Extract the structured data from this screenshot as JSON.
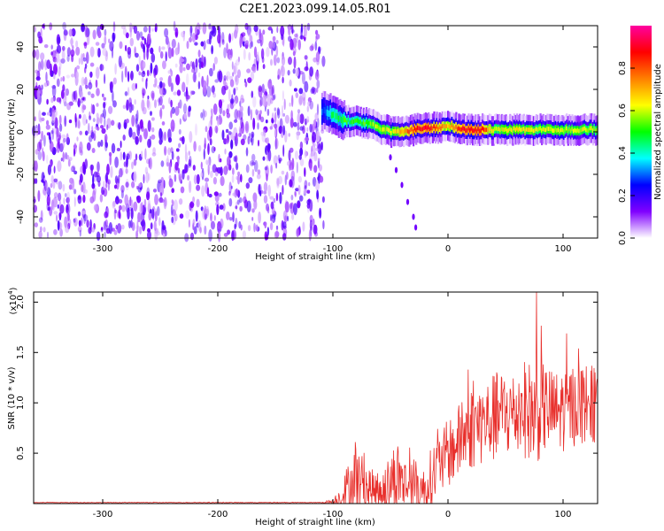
{
  "title": "C2E1.2023.099.14.05.R01",
  "chart_data": [
    {
      "type": "heatmap",
      "name": "spectrogram",
      "xlabel": "Height of straight line (km)",
      "ylabel": "Frequency (Hz)",
      "xlim": [
        -360,
        130
      ],
      "ylim": [
        -50,
        50
      ],
      "xticks": [
        -300,
        -200,
        -100,
        0,
        100
      ],
      "yticks": [
        -40,
        -20,
        0,
        20,
        40
      ],
      "colorbar": {
        "label": "Normalized spectral amplitude",
        "range": [
          0,
          1
        ],
        "ticks": [
          "0.0",
          "0.2",
          "0.4",
          "0.6",
          "0.8"
        ],
        "colormap": "rainbow",
        "colors": [
          "#ffffff",
          "#8000ff",
          "#0000ff",
          "#00ffff",
          "#00ff00",
          "#ffff00",
          "#ff8000",
          "#ff0000",
          "#ff00a0"
        ]
      },
      "noise_region_x": [
        -360,
        -108
      ],
      "signal_track": {
        "x": [
          -110,
          -100,
          -90,
          -80,
          -70,
          -60,
          -50,
          -40,
          -30,
          -20,
          -10,
          0,
          10,
          20,
          30,
          40,
          60,
          80,
          100,
          130
        ],
        "freq": [
          10,
          8,
          5,
          5,
          4,
          2,
          0,
          0,
          1,
          2,
          2,
          3,
          1,
          1,
          1,
          1,
          1,
          1,
          1,
          1
        ],
        "amplitude": [
          0.3,
          0.45,
          0.5,
          0.5,
          0.55,
          0.6,
          0.6,
          0.7,
          0.85,
          0.9,
          0.8,
          0.7,
          0.85,
          0.9,
          0.85,
          0.6,
          0.65,
          0.6,
          0.6,
          0.6
        ]
      },
      "secondary_track": {
        "x": [
          -50,
          -45,
          -40,
          -35,
          -30,
          -28
        ],
        "freq": [
          -12,
          -18,
          -25,
          -33,
          -40,
          -45
        ]
      }
    },
    {
      "type": "line",
      "name": "snr",
      "xlabel": "Height of straight line (km)",
      "ylabel": "SNR (10 * v/v)",
      "multiplier_label": "(x10",
      "multiplier_exp": "4",
      "multiplier_close": ")",
      "xlim": [
        -360,
        130
      ],
      "ylim": [
        0,
        2.1
      ],
      "xticks": [
        -300,
        -200,
        -100,
        0,
        100
      ],
      "yticks": [
        "0.5",
        "1.0",
        "1.5",
        "2.0"
      ],
      "line_color": "#e8302c",
      "envelope": {
        "x": [
          -360,
          -110,
          -100,
          -95,
          -90,
          -85,
          -80,
          -75,
          -70,
          -65,
          -60,
          -55,
          -50,
          -45,
          -40,
          -35,
          -30,
          -25,
          -20,
          -15,
          -10,
          -5,
          0,
          5,
          10,
          15,
          20,
          25,
          30,
          35,
          40,
          45,
          50,
          55,
          60,
          65,
          70,
          75,
          80,
          85,
          90,
          95,
          100,
          105,
          110,
          115,
          120,
          125,
          130
        ],
        "base": [
          0.01,
          0.01,
          0.02,
          0.05,
          0.1,
          0.18,
          0.25,
          0.2,
          0.16,
          0.13,
          0.12,
          0.15,
          0.2,
          0.3,
          0.22,
          0.18,
          0.2,
          0.17,
          0.12,
          0.25,
          0.35,
          0.4,
          0.5,
          0.55,
          0.62,
          0.7,
          0.75,
          0.78,
          0.8,
          0.82,
          0.85,
          0.88,
          0.9,
          0.88,
          0.9,
          0.95,
          0.92,
          0.9,
          0.93,
          0.95,
          0.92,
          0.9,
          0.93,
          0.95,
          0.98,
          1.0,
          1.0,
          0.98,
          0.95
        ],
        "spread": [
          0.003,
          0.003,
          0.03,
          0.1,
          0.2,
          0.3,
          0.35,
          0.3,
          0.25,
          0.2,
          0.2,
          0.25,
          0.3,
          0.38,
          0.3,
          0.25,
          0.25,
          0.25,
          0.22,
          0.3,
          0.32,
          0.32,
          0.35,
          0.35,
          0.38,
          0.4,
          0.42,
          0.42,
          0.42,
          0.42,
          0.45,
          0.45,
          0.45,
          0.45,
          0.45,
          0.48,
          0.5,
          0.55,
          0.5,
          0.45,
          0.42,
          0.42,
          0.42,
          0.42,
          0.42,
          0.42,
          0.4,
          0.4,
          0.38
        ]
      },
      "peak": {
        "x": 77,
        "y": 2.1
      }
    }
  ]
}
